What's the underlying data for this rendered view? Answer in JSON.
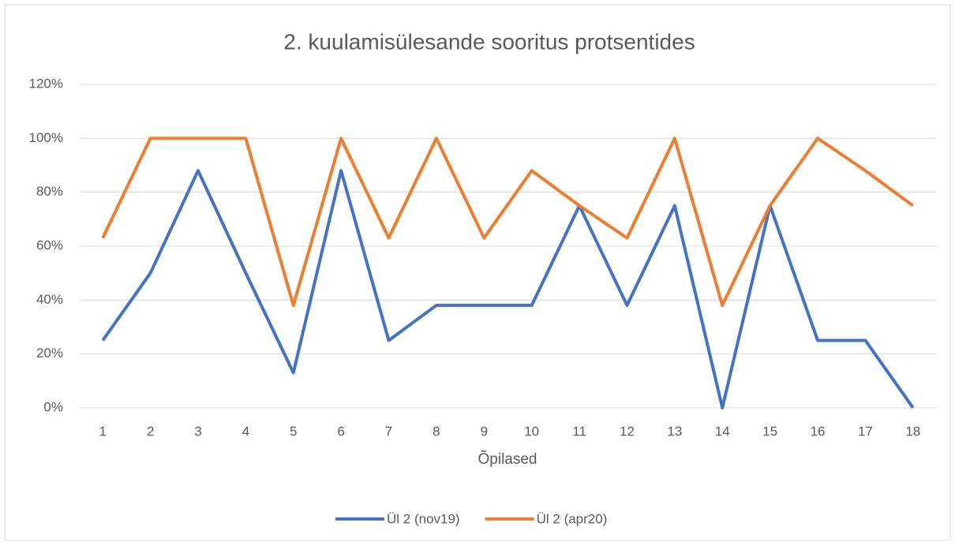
{
  "chart_data": {
    "type": "line",
    "title": "2. kuulamisülesande sooritus protsentides",
    "x_label": "Õpilased",
    "categories": [
      "1",
      "2",
      "3",
      "4",
      "5",
      "6",
      "7",
      "8",
      "9",
      "10",
      "11",
      "12",
      "13",
      "14",
      "15",
      "16",
      "17",
      "18"
    ],
    "series": [
      {
        "name": "Ül 2 (nov19)",
        "color": "#4472c4",
        "values": [
          25,
          50,
          88,
          50,
          13,
          88,
          25,
          38,
          38,
          38,
          75,
          38,
          75,
          0,
          75,
          25,
          25,
          0
        ]
      },
      {
        "name": "Ül 2 (apr20)",
        "color": "#ed7d31",
        "values": [
          63,
          100,
          100,
          100,
          38,
          100,
          63,
          100,
          63,
          88,
          75,
          63,
          100,
          38,
          75,
          100,
          88,
          75
        ]
      }
    ],
    "ylim": [
      0,
      120
    ],
    "yticks": [
      {
        "value": 0,
        "label": "0%"
      },
      {
        "value": 20,
        "label": "20%"
      },
      {
        "value": 40,
        "label": "40%"
      },
      {
        "value": 60,
        "label": "60%"
      },
      {
        "value": 80,
        "label": "80%"
      },
      {
        "value": 100,
        "label": "100%"
      },
      {
        "value": 120,
        "label": "120%"
      }
    ],
    "grid": true,
    "legend": "bottom"
  }
}
